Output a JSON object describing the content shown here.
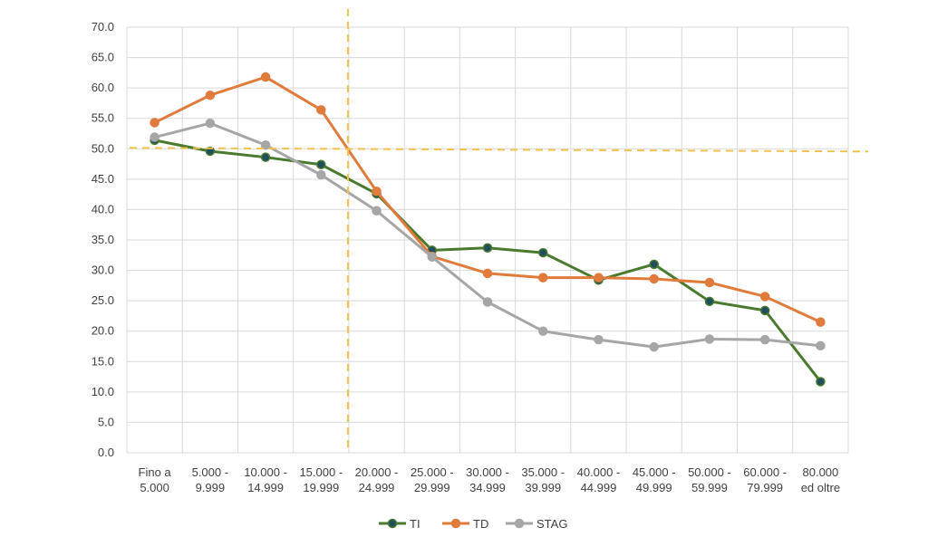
{
  "chart_data": {
    "type": "line",
    "categories": [
      [
        "Fino a",
        "5.000"
      ],
      [
        "5.000 -",
        "9.999"
      ],
      [
        "10.000 -",
        "14.999"
      ],
      [
        "15.000 -",
        "19.999"
      ],
      [
        "20.000 -",
        "24.999"
      ],
      [
        "25.000 -",
        "29.999"
      ],
      [
        "30.000 -",
        "34.999"
      ],
      [
        "35.000 -",
        "39.999"
      ],
      [
        "40.000 -",
        "44.999"
      ],
      [
        "45.000 -",
        "49.999"
      ],
      [
        "50.000 -",
        "59.999"
      ],
      [
        "60.000 -",
        "79.999"
      ],
      [
        "80.000",
        "ed oltre"
      ]
    ],
    "series": [
      {
        "name": "TI",
        "color": "#4a7a2e",
        "marker_color": "#1f4e5f",
        "values": [
          51.4,
          49.6,
          48.6,
          47.4,
          42.6,
          33.3,
          33.7,
          32.9,
          28.4,
          31.0,
          24.9,
          23.4,
          11.7
        ]
      },
      {
        "name": "TD",
        "color": "#e07b3c",
        "marker_color": "#e07b3c",
        "values": [
          54.3,
          58.8,
          61.8,
          56.4,
          43.0,
          32.3,
          29.5,
          28.8,
          28.8,
          28.6,
          28.0,
          25.7,
          21.5
        ]
      },
      {
        "name": "STAG",
        "color": "#a6a6a6",
        "marker_color": "#a6a6a6",
        "values": [
          51.9,
          54.2,
          50.6,
          45.7,
          39.8,
          32.2,
          24.8,
          20.0,
          18.6,
          17.4,
          18.7,
          18.6,
          17.6
        ]
      }
    ],
    "ylim": [
      0,
      70
    ],
    "ytick_step": 5,
    "ytick_decimals": 1,
    "grid": true,
    "legend_position": "bottom",
    "reference_lines": {
      "horizontal_y": 50,
      "vertical_category": "between 15.000 - 19.999 and 20.000 - 24.999",
      "color": "#f2c14e",
      "style": "dashed"
    }
  }
}
